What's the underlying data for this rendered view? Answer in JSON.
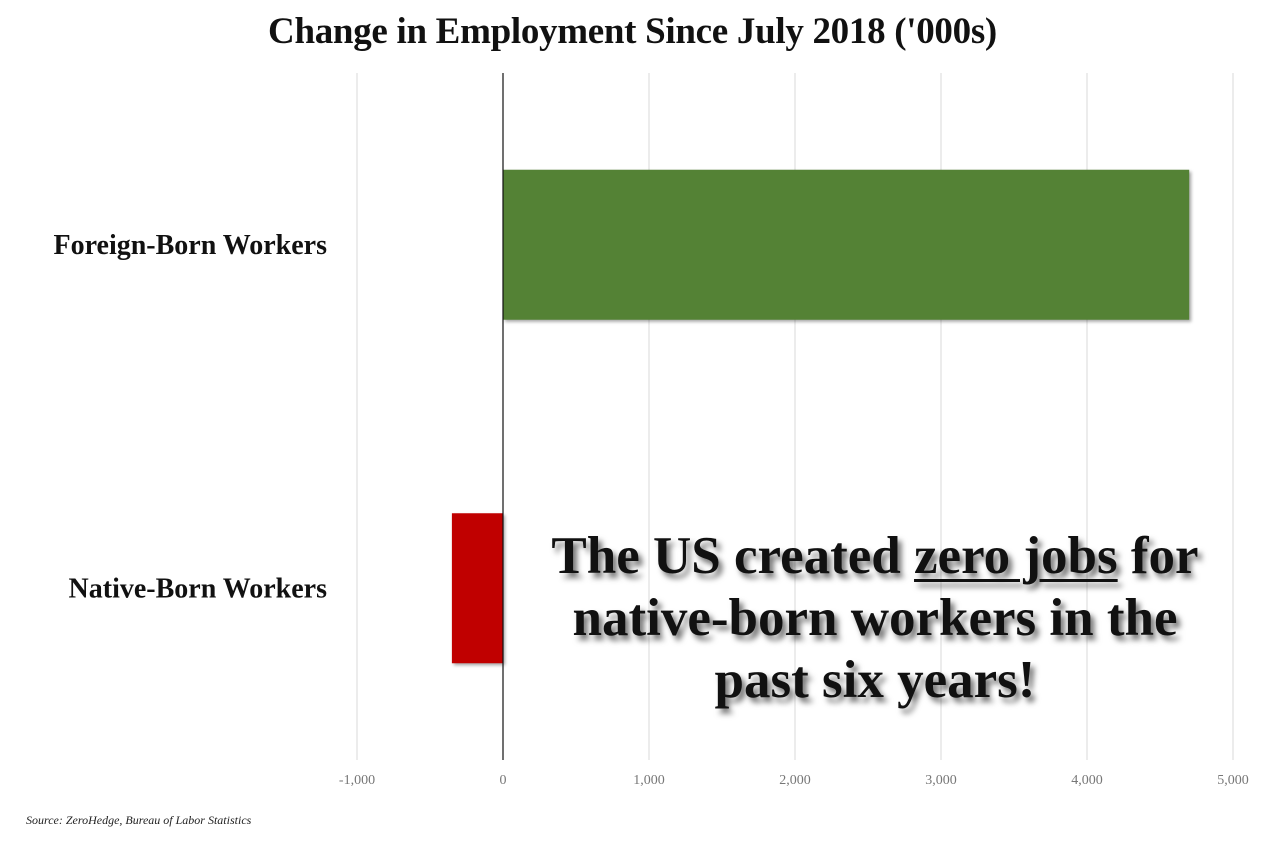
{
  "chart_data": {
    "type": "bar",
    "orientation": "horizontal",
    "title": "Change in Employment Since July 2018 ('000s)",
    "categories": [
      "Foreign-Born Workers",
      "Native-Born Workers"
    ],
    "values": [
      4700,
      -350
    ],
    "colors": [
      "#548235",
      "#c00000"
    ],
    "xlim": [
      -1000,
      5000
    ],
    "x_ticks": [
      -1000,
      0,
      1000,
      2000,
      3000,
      4000,
      5000
    ],
    "x_tick_labels": [
      "-1,000",
      "0",
      "1,000",
      "2,000",
      "3,000",
      "4,000",
      "5,000"
    ],
    "grid": "vertical",
    "annotation": {
      "before": "The US created ",
      "underlined": "zero jobs",
      "after": " for native-born workers in the past six years!"
    },
    "source": "Source: ZeroHedge, Bureau of Labor Statistics"
  }
}
